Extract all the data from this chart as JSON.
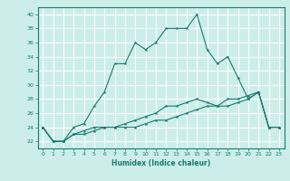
{
  "xlabel": "Humidex (Indice chaleur)",
  "ylabel": "",
  "bg_color": "#cceee8",
  "grid_color": "#ffffff",
  "line_color": "#1a7a6e",
  "xlim": [
    -0.5,
    23.5
  ],
  "ylim": [
    21,
    41
  ],
  "yticks": [
    22,
    24,
    26,
    28,
    30,
    32,
    34,
    36,
    38,
    40
  ],
  "xticks": [
    0,
    1,
    2,
    3,
    4,
    5,
    6,
    7,
    8,
    9,
    10,
    11,
    12,
    13,
    14,
    15,
    16,
    17,
    18,
    19,
    20,
    21,
    22,
    23
  ],
  "line1_x": [
    0,
    1,
    2,
    3,
    4,
    5,
    6,
    7,
    8,
    9,
    10,
    11,
    12,
    13,
    14,
    15,
    16,
    17,
    18,
    19,
    20,
    21,
    22,
    23
  ],
  "line1_y": [
    24,
    22,
    22,
    24,
    24.5,
    27,
    29,
    33,
    33,
    36,
    35,
    36,
    38,
    38,
    38,
    40,
    35,
    33,
    34,
    31,
    28,
    29,
    24,
    24
  ],
  "line2_x": [
    0,
    1,
    2,
    3,
    4,
    5,
    6,
    7,
    8,
    9,
    10,
    11,
    12,
    13,
    14,
    15,
    16,
    17,
    18,
    19,
    20,
    21,
    22,
    23
  ],
  "line2_y": [
    24,
    22,
    22,
    23,
    23.5,
    24,
    24,
    24,
    24.5,
    25,
    25.5,
    26,
    27,
    27,
    27.5,
    28,
    27.5,
    27,
    28,
    28,
    28.5,
    29,
    24,
    24
  ],
  "line3_x": [
    0,
    1,
    2,
    3,
    4,
    5,
    6,
    7,
    8,
    9,
    10,
    11,
    12,
    13,
    14,
    15,
    16,
    17,
    18,
    19,
    20,
    21,
    22,
    23
  ],
  "line3_y": [
    24,
    22,
    22,
    23,
    23,
    23.5,
    24,
    24,
    24,
    24,
    24.5,
    25,
    25,
    25.5,
    26,
    26.5,
    27,
    27,
    27,
    27.5,
    28,
    29,
    24,
    24
  ]
}
